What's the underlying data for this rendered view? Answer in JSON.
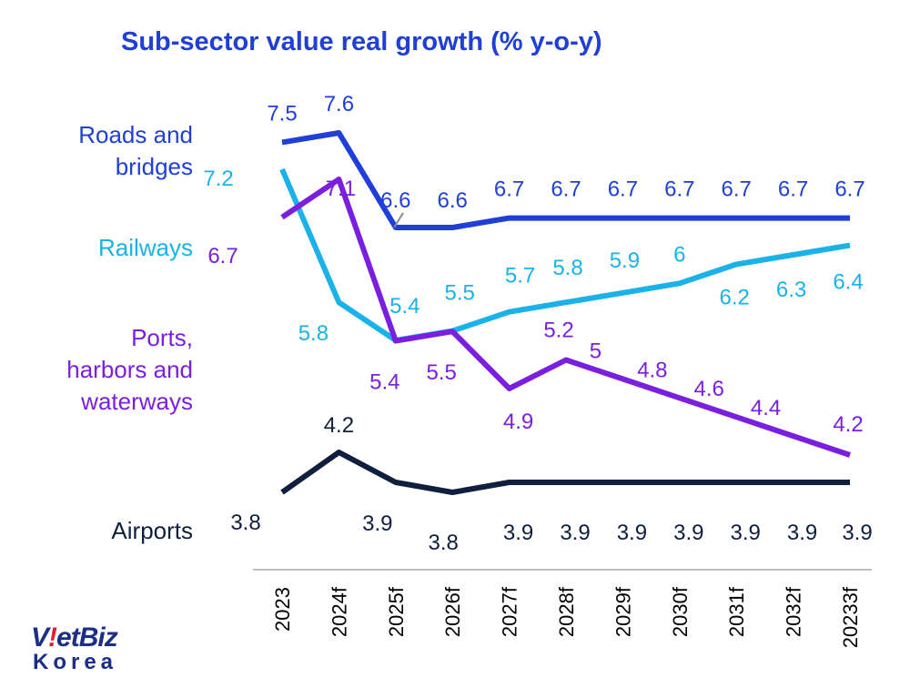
{
  "chart_data": {
    "type": "line",
    "title": "Sub-sector value real growth (% y-o-y)",
    "categories": [
      "2023",
      "2024f",
      "2025f",
      "2026f",
      "2027f",
      "2028f",
      "2029f",
      "2030f",
      "2031f",
      "2032f",
      "20233f"
    ],
    "xlabel": "",
    "ylabel": "",
    "ylim": [
      3.6,
      7.8
    ],
    "grid": false,
    "legend": "left, inline labels",
    "series": [
      {
        "name": "Roads and bridges",
        "label_lines": [
          "Roads and",
          "bridges"
        ],
        "color": "#1f3fd6",
        "values": [
          7.5,
          7.6,
          6.6,
          6.6,
          6.7,
          6.7,
          6.7,
          6.7,
          6.7,
          6.7,
          6.7
        ],
        "labels": [
          "7.5",
          "7.6",
          "6.6",
          "6.6",
          "6.7",
          "6.7",
          "6.7",
          "6.7",
          "6.7",
          "6.7",
          "6.7"
        ]
      },
      {
        "name": "Railways",
        "label_lines": [
          "Railways"
        ],
        "color": "#1ab2e8",
        "values": [
          7.2,
          5.8,
          5.4,
          5.5,
          5.7,
          5.8,
          5.9,
          6.0,
          6.2,
          6.3,
          6.4
        ],
        "labels": [
          "7.2",
          "5.8",
          "5.4",
          "5.5",
          "5.7",
          "5.8",
          "5.9",
          "6",
          "6.2",
          "6.3",
          "6.4"
        ]
      },
      {
        "name": "Ports, harbors and waterways",
        "label_lines": [
          "Ports,",
          "harbors and",
          "waterways"
        ],
        "color": "#7a1fe0",
        "values": [
          6.7,
          7.1,
          5.4,
          5.5,
          4.9,
          5.2,
          5.0,
          4.8,
          4.6,
          4.4,
          4.2
        ],
        "labels": [
          "6.7",
          "7.1",
          "5.4",
          "5.5",
          "4.9",
          "5.2",
          "5",
          "4.8",
          "4.6",
          "4.4",
          "4.2"
        ]
      },
      {
        "name": "Airports",
        "label_lines": [
          "Airports"
        ],
        "color": "#0f1f3d",
        "values": [
          3.8,
          4.2,
          3.9,
          3.8,
          3.9,
          3.9,
          3.9,
          3.9,
          3.9,
          3.9,
          3.9
        ],
        "labels": [
          "3.8",
          "4.2",
          "3.9",
          "3.8",
          "3.9",
          "3.9",
          "3.9",
          "3.9",
          "3.9",
          "3.9",
          "3.9"
        ]
      }
    ]
  },
  "logo": {
    "top_left": "V",
    "top_accent": "!",
    "top_rest": "etBiz",
    "bottom": "Korea"
  }
}
